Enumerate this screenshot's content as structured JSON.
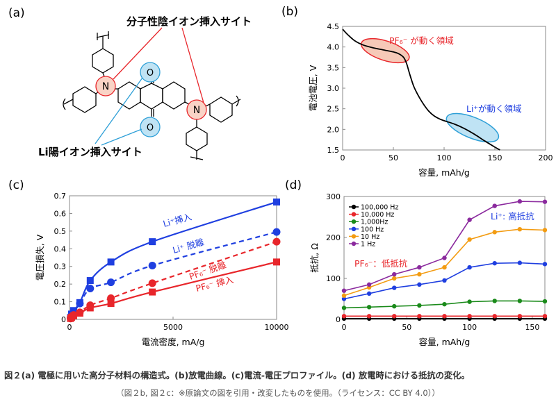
{
  "panels": {
    "a": "(a)",
    "b": "(b)",
    "c": "(c)",
    "d": "(d)"
  },
  "structure": {
    "anion_site_label": "分子性陰イオン挿入サイト",
    "li_site_label": "Li陽イオン挿入サイト",
    "n_label": "N",
    "o_label": "O"
  },
  "caption": {
    "main": "図２(a) 電極に用いた高分子材料の構造式。(b)放電曲線。(c)電流-電圧プロファイル。(d) 放電時における抵抗の変化。",
    "credit": "（図２b, 図２c：※原論文の図を引用・改変したものを使用。（ライセンス：CC BY 4.0））"
  },
  "colors": {
    "red": "#e8262b",
    "blue": "#1f3fe0",
    "green": "#1a8a1a",
    "orange": "#f39c12",
    "purple": "#8b2a9e",
    "black": "#000000"
  },
  "chart_data": [
    {
      "type": "line",
      "panel": "b",
      "xlabel": "容量, mAh/g",
      "ylabel": "電池電圧, V",
      "xlim": [
        0,
        200
      ],
      "ylim": [
        1.5,
        4.5
      ],
      "xticks": [
        0,
        50,
        100,
        150,
        200
      ],
      "yticks": [
        1.5,
        2.0,
        2.5,
        3.0,
        3.5,
        4.0,
        4.5
      ],
      "series": [
        {
          "x": [
            0,
            5,
            12,
            20,
            30,
            40,
            50,
            55,
            60,
            63,
            66,
            70,
            75,
            80,
            85,
            90,
            95,
            100,
            110,
            120,
            130,
            140,
            150,
            155
          ],
          "y": [
            4.43,
            4.3,
            4.15,
            4.05,
            3.98,
            3.93,
            3.88,
            3.84,
            3.75,
            3.6,
            3.35,
            3.05,
            2.8,
            2.6,
            2.44,
            2.33,
            2.26,
            2.21,
            2.13,
            2.02,
            1.88,
            1.72,
            1.57,
            1.5
          ]
        }
      ],
      "annotations": [
        {
          "text": "PF₆⁻ が動く領域",
          "color": "red"
        },
        {
          "text": "Li⁺が動く領域",
          "color": "blue"
        }
      ]
    },
    {
      "type": "line",
      "panel": "c",
      "xlabel": "電流密度, mA/g",
      "ylabel": "電圧損失, V",
      "xlim": [
        0,
        10000
      ],
      "ylim": [
        0,
        0.7
      ],
      "xticks": [
        0,
        5000,
        10000
      ],
      "yticks": [
        0,
        0.1,
        0.2,
        0.3,
        0.4,
        0.5,
        0.6,
        0.7
      ],
      "x": [
        50,
        100,
        200,
        500,
        1000,
        2000,
        4000,
        10000
      ],
      "series": [
        {
          "name": "Li⁺挿入",
          "marker": "square",
          "dash": false,
          "color": "blue",
          "values": [
            0.01,
            0.03,
            0.05,
            0.095,
            0.22,
            0.325,
            0.44,
            0.665
          ]
        },
        {
          "name": "Li⁺ 脱離",
          "marker": "circle",
          "dash": true,
          "color": "blue",
          "values": [
            0.01,
            0.025,
            0.04,
            0.09,
            0.175,
            0.21,
            0.305,
            0.495
          ]
        },
        {
          "name": "PF₆⁻ 脱離",
          "marker": "circle",
          "dash": true,
          "color": "red",
          "values": [
            0.005,
            0.015,
            0.025,
            0.04,
            0.08,
            0.12,
            0.205,
            0.44
          ]
        },
        {
          "name": "PF₆⁻ 挿入",
          "marker": "square",
          "dash": false,
          "color": "red",
          "values": [
            0.005,
            0.012,
            0.02,
            0.035,
            0.065,
            0.09,
            0.155,
            0.325
          ]
        }
      ]
    },
    {
      "type": "line",
      "panel": "d",
      "xlabel": "容量, mAh/g",
      "ylabel": "抵抗, Ω",
      "xlim": [
        0,
        160
      ],
      "ylim": [
        0,
        300
      ],
      "xticks": [
        0,
        50,
        100,
        150
      ],
      "yticks": [
        0,
        100,
        200,
        300
      ],
      "x": [
        0,
        20,
        40,
        60,
        80,
        100,
        120,
        140,
        160
      ],
      "legend_position": "top-left",
      "series": [
        {
          "name": "100,000 Hz",
          "color": "black",
          "values": [
            2,
            2,
            2,
            2,
            2,
            2,
            2,
            2,
            2
          ]
        },
        {
          "name": "10,000 Hz",
          "color": "red",
          "values": [
            8,
            8,
            8,
            8,
            8,
            8,
            8,
            8,
            8
          ]
        },
        {
          "name": "1,000Hz",
          "color": "green",
          "values": [
            28,
            30,
            32,
            34,
            37,
            43,
            45,
            45,
            44
          ]
        },
        {
          "name": "100 Hz",
          "color": "blue",
          "values": [
            50,
            63,
            77,
            85,
            95,
            127,
            137,
            138,
            135
          ]
        },
        {
          "name": "10 Hz",
          "color": "orange",
          "values": [
            58,
            78,
            100,
            110,
            127,
            195,
            213,
            220,
            218
          ]
        },
        {
          "name": "1 Hz",
          "color": "purple",
          "values": [
            70,
            85,
            110,
            127,
            150,
            243,
            277,
            288,
            287
          ]
        }
      ],
      "annotations": [
        {
          "text": "Li⁺: 高抵抗",
          "color": "blue"
        },
        {
          "text": "PF₆⁻：低抵抗",
          "color": "red"
        }
      ]
    }
  ]
}
